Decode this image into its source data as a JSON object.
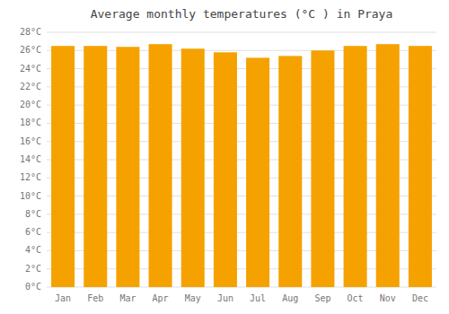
{
  "chart_data": {
    "type": "bar",
    "title": "Average monthly temperatures (°C ) in Praya",
    "categories": [
      "Jan",
      "Feb",
      "Mar",
      "Apr",
      "May",
      "Jun",
      "Jul",
      "Aug",
      "Sep",
      "Oct",
      "Nov",
      "Dec"
    ],
    "values": [
      26.5,
      26.5,
      26.4,
      26.7,
      26.2,
      25.8,
      25.2,
      25.4,
      26.0,
      26.5,
      26.7,
      26.5
    ],
    "color": "#F5A200",
    "ylim": [
      0,
      28
    ],
    "yticks": [
      {
        "value": 0,
        "label": "0°C"
      },
      {
        "value": 2,
        "label": "2°C"
      },
      {
        "value": 4,
        "label": "4°C"
      },
      {
        "value": 6,
        "label": "6°C"
      },
      {
        "value": 8,
        "label": "8°C"
      },
      {
        "value": 10,
        "label": "10°C"
      },
      {
        "value": 12,
        "label": "12°C"
      },
      {
        "value": 14,
        "label": "14°C"
      },
      {
        "value": 16,
        "label": "16°C"
      },
      {
        "value": 18,
        "label": "18°C"
      },
      {
        "value": 20,
        "label": "20°C"
      },
      {
        "value": 22,
        "label": "22°C"
      },
      {
        "value": 24,
        "label": "24°C"
      },
      {
        "value": 26,
        "label": "26°C"
      },
      {
        "value": 28,
        "label": "28°C"
      }
    ],
    "grid": true
  }
}
